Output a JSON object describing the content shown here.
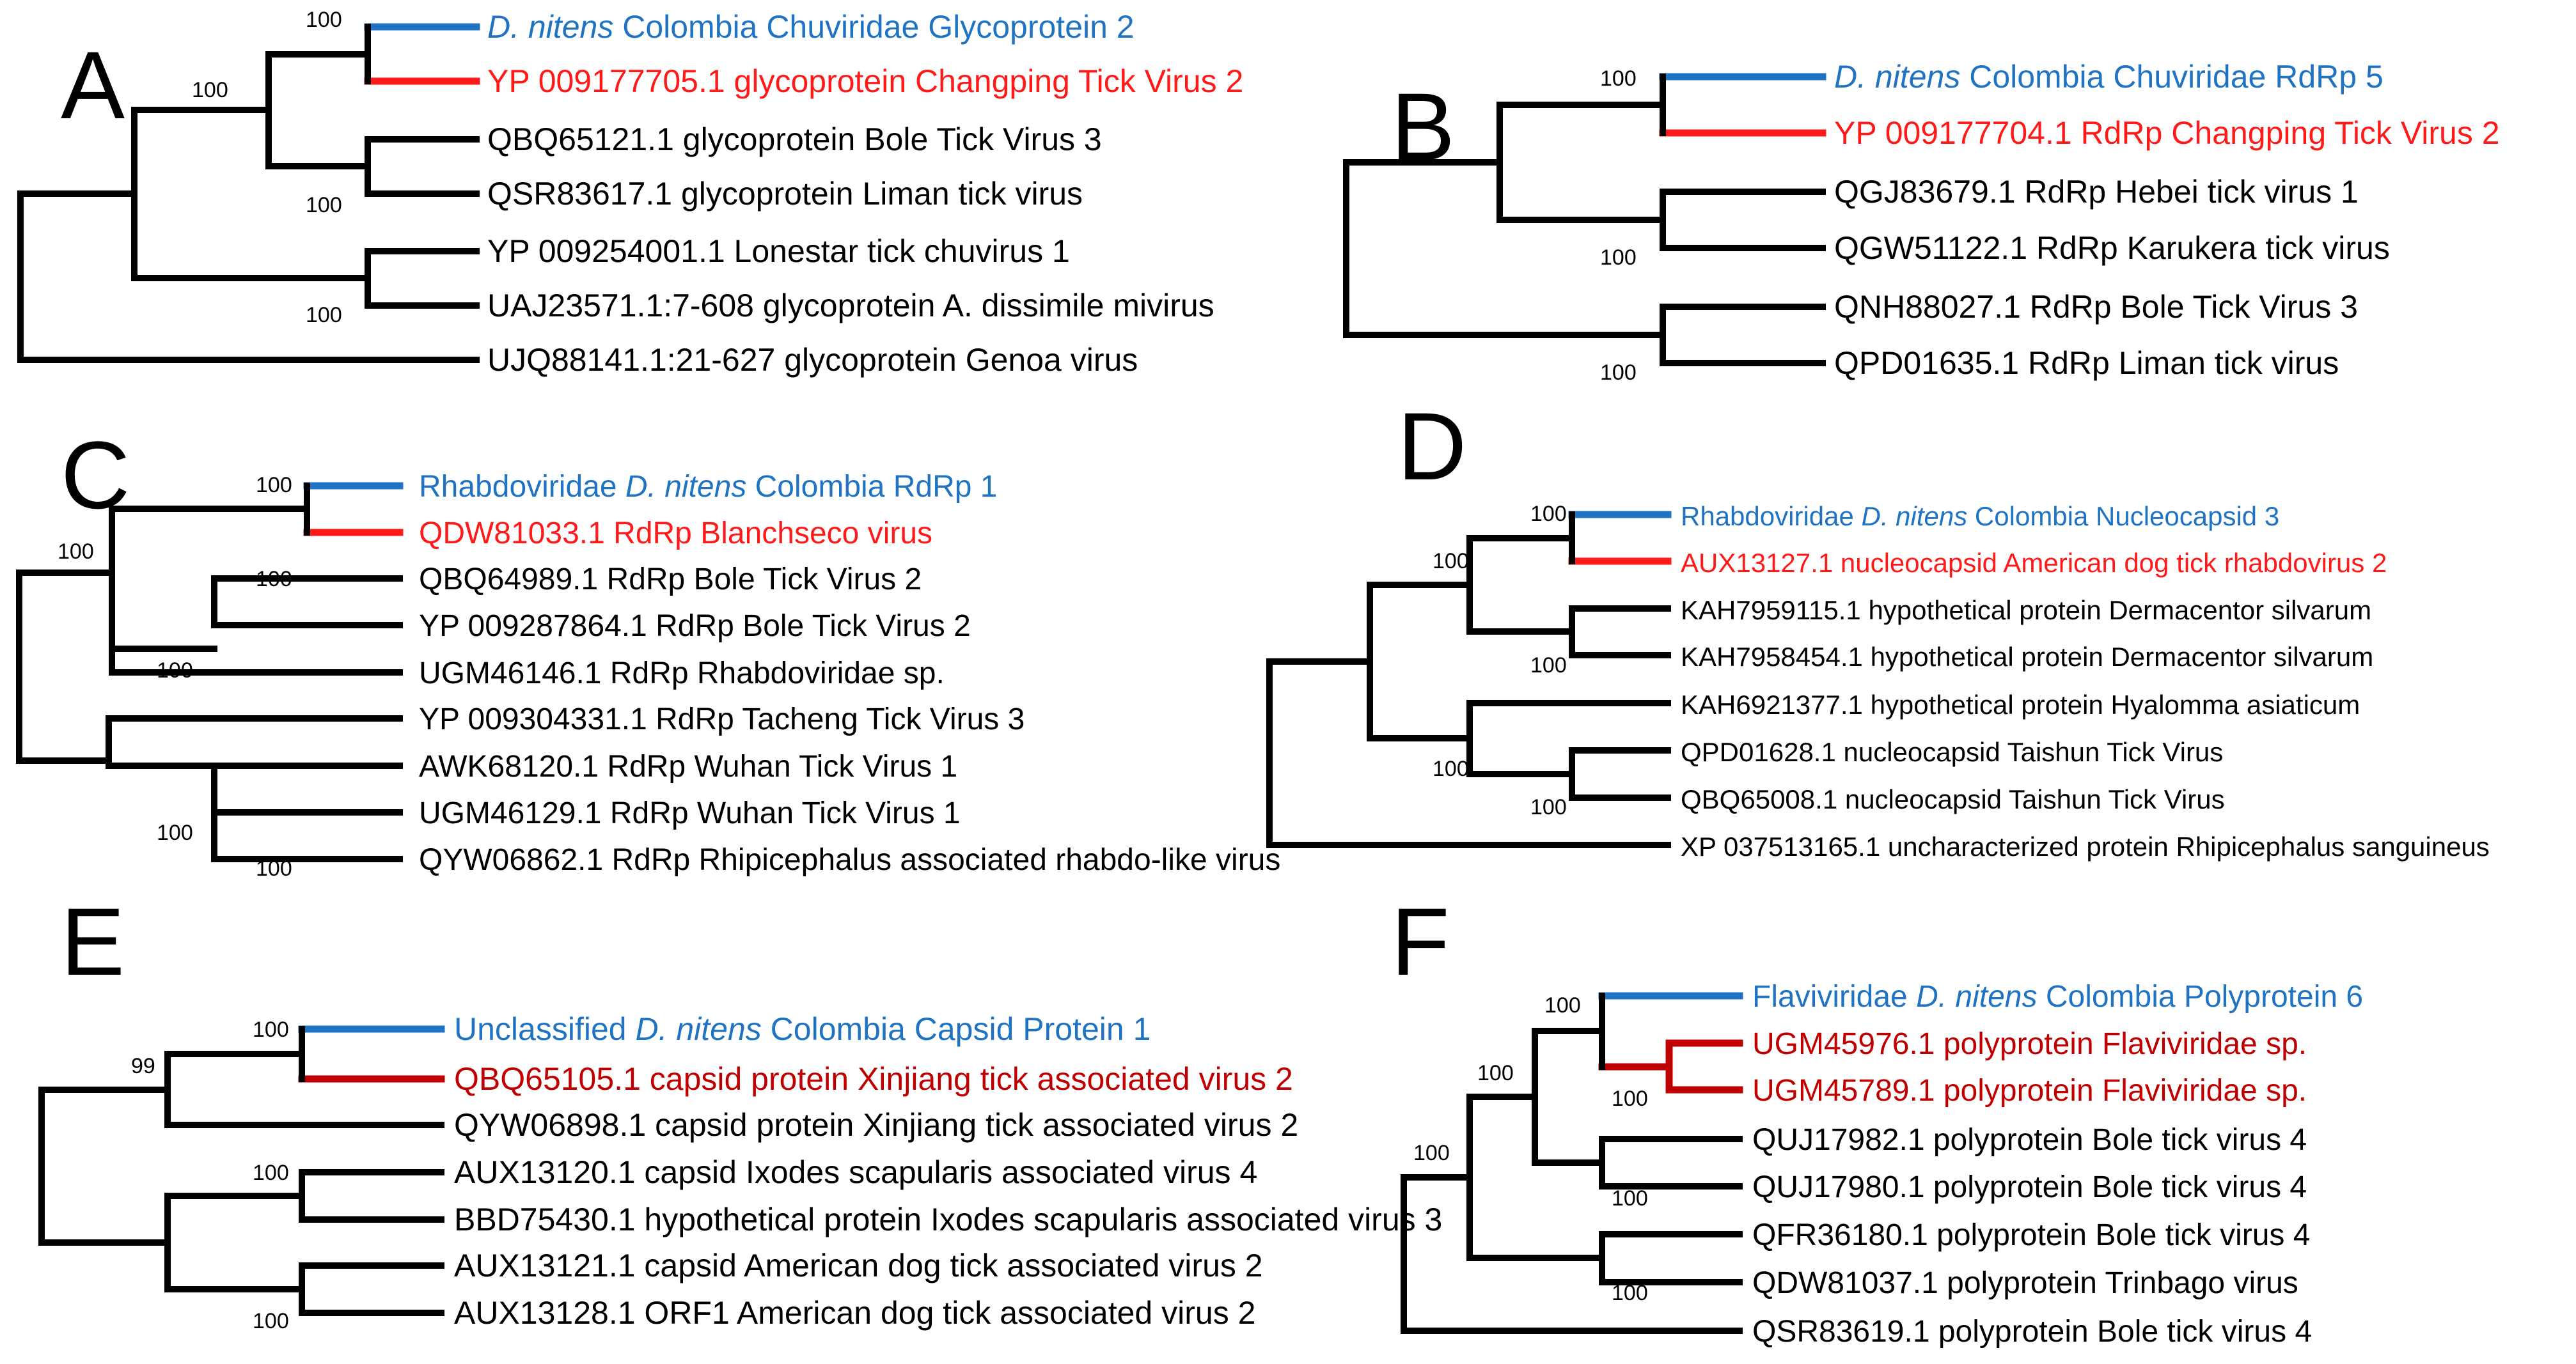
{
  "colors": {
    "black": "#000000",
    "blue": "#1f73c2",
    "red": "#ff1a1a",
    "darkred": "#c00000"
  },
  "panels": [
    {
      "letter": "A",
      "labels": [
        {
          "pre": "",
          "italic": "D. nitens",
          "post": " Colombia Chuviridae Glycoprotein 2",
          "color": "blue"
        },
        {
          "pre": "YP 009177705.1 glycoprotein Changping Tick Virus 2",
          "italic": "",
          "post": "",
          "color": "red"
        },
        {
          "pre": "QBQ65121.1 glycoprotein Bole Tick Virus 3",
          "italic": "",
          "post": "",
          "color": "black"
        },
        {
          "pre": "QSR83617.1 glycoprotein Liman tick virus",
          "italic": "",
          "post": "",
          "color": "black"
        },
        {
          "pre": "YP 009254001.1 Lonestar tick chuvirus 1",
          "italic": "",
          "post": "",
          "color": "black"
        },
        {
          "pre": "UAJ23571.1:7-608 glycoprotein A. dissimile mivirus",
          "italic": "",
          "post": "",
          "color": "black"
        },
        {
          "pre": "UJQ88141.1:21-627 glycoprotein Genoa virus",
          "italic": "",
          "post": "",
          "color": "black"
        }
      ],
      "bootstrap": [
        "100",
        "100",
        "100",
        "100"
      ]
    },
    {
      "letter": "B",
      "labels": [
        {
          "pre": "",
          "italic": "D. nitens",
          "post": " Colombia Chuviridae RdRp 5",
          "color": "blue"
        },
        {
          "pre": "YP 009177704.1 RdRp Changping Tick Virus 2",
          "italic": "",
          "post": "",
          "color": "red"
        },
        {
          "pre": "QGJ83679.1 RdRp Hebei tick virus 1",
          "italic": "",
          "post": "",
          "color": "black"
        },
        {
          "pre": "QGW51122.1 RdRp Karukera tick virus",
          "italic": "",
          "post": "",
          "color": "black"
        },
        {
          "pre": "QNH88027.1 RdRp Bole Tick Virus 3",
          "italic": "",
          "post": "",
          "color": "black"
        },
        {
          "pre": "QPD01635.1 RdRp Liman tick virus",
          "italic": "",
          "post": "",
          "color": "black"
        }
      ],
      "bootstrap": [
        "100",
        "100",
        "100"
      ]
    },
    {
      "letter": "C",
      "labels": [
        {
          "pre": "Rhabdoviridae ",
          "italic": "D. nitens",
          "post": " Colombia RdRp 1",
          "color": "blue"
        },
        {
          "pre": "QDW81033.1 RdRp Blanchseco virus",
          "italic": "",
          "post": "",
          "color": "red"
        },
        {
          "pre": "QBQ64989.1 RdRp Bole Tick Virus 2",
          "italic": "",
          "post": "",
          "color": "black"
        },
        {
          "pre": "YP 009287864.1 RdRp Bole Tick Virus 2",
          "italic": "",
          "post": "",
          "color": "black"
        },
        {
          "pre": "UGM46146.1 RdRp Rhabdoviridae sp.",
          "italic": "",
          "post": "",
          "color": "black"
        },
        {
          "pre": "YP 009304331.1 RdRp Tacheng Tick Virus 3",
          "italic": "",
          "post": "",
          "color": "black"
        },
        {
          "pre": "AWK68120.1 RdRp Wuhan Tick Virus 1",
          "italic": "",
          "post": "",
          "color": "black"
        },
        {
          "pre": "UGM46129.1 RdRp Wuhan Tick Virus 1",
          "italic": "",
          "post": "",
          "color": "black"
        },
        {
          "pre": "QYW06862.1 RdRp Rhipicephalus associated rhabdo-like virus",
          "italic": "",
          "post": "",
          "color": "black"
        }
      ],
      "bootstrap": [
        "100",
        "100",
        "100",
        "100",
        "100",
        "100"
      ]
    },
    {
      "letter": "D",
      "labels": [
        {
          "pre": "Rhabdoviridae ",
          "italic": "D. nitens",
          "post": " Colombia Nucleocapsid 3",
          "color": "blue"
        },
        {
          "pre": "AUX13127.1 nucleocapsid American dog tick rhabdovirus 2",
          "italic": "",
          "post": "",
          "color": "red"
        },
        {
          "pre": "KAH7959115.1 hypothetical protein Dermacentor silvarum",
          "italic": "",
          "post": "",
          "color": "black"
        },
        {
          "pre": "KAH7958454.1 hypothetical protein Dermacentor silvarum",
          "italic": "",
          "post": "",
          "color": "black"
        },
        {
          "pre": "KAH6921377.1 hypothetical protein Hyalomma asiaticum",
          "italic": "",
          "post": "",
          "color": "black"
        },
        {
          "pre": "QPD01628.1 nucleocapsid Taishun Tick Virus",
          "italic": "",
          "post": "",
          "color": "black"
        },
        {
          "pre": "QBQ65008.1 nucleocapsid Taishun Tick Virus",
          "italic": "",
          "post": "",
          "color": "black"
        },
        {
          "pre": "XP 037513165.1 uncharacterized protein Rhipicephalus sanguineus",
          "italic": "",
          "post": "",
          "color": "black"
        }
      ],
      "bootstrap": [
        "100",
        "100",
        "100",
        "100",
        "100"
      ]
    },
    {
      "letter": "E",
      "labels": [
        {
          "pre": "Unclassified ",
          "italic": "D. nitens",
          "post": " Colombia Capsid Protein 1",
          "color": "blue"
        },
        {
          "pre": "QBQ65105.1 capsid protein Xinjiang tick associated virus 2",
          "italic": "",
          "post": "",
          "color": "darkred"
        },
        {
          "pre": "QYW06898.1 capsid protein Xinjiang tick associated virus 2",
          "italic": "",
          "post": "",
          "color": "black"
        },
        {
          "pre": "AUX13120.1 capsid Ixodes scapularis associated virus 4",
          "italic": "",
          "post": "",
          "color": "black"
        },
        {
          "pre": "BBD75430.1 hypothetical protein Ixodes scapularis associated virus 3",
          "italic": "",
          "post": "",
          "color": "black"
        },
        {
          "pre": "AUX13121.1 capsid American dog tick associated virus 2",
          "italic": "",
          "post": "",
          "color": "black"
        },
        {
          "pre": "AUX13128.1 ORF1 American dog tick associated virus 2",
          "italic": "",
          "post": "",
          "color": "black"
        }
      ],
      "bootstrap": [
        "100",
        "99",
        "100",
        "100"
      ]
    },
    {
      "letter": "F",
      "labels": [
        {
          "pre": "Flaviviridae ",
          "italic": "D. nitens",
          "post": " Colombia Polyprotein 6",
          "color": "blue"
        },
        {
          "pre": "UGM45976.1 polyprotein Flaviviridae sp.",
          "italic": "",
          "post": "",
          "color": "darkred"
        },
        {
          "pre": "UGM45789.1 polyprotein Flaviviridae sp.",
          "italic": "",
          "post": "",
          "color": "darkred"
        },
        {
          "pre": "QUJ17982.1 polyprotein Bole tick virus 4",
          "italic": "",
          "post": "",
          "color": "black"
        },
        {
          "pre": "QUJ17980.1 polyprotein Bole tick virus 4",
          "italic": "",
          "post": "",
          "color": "black"
        },
        {
          "pre": "QFR36180.1 polyprotein Bole tick virus 4",
          "italic": "",
          "post": "",
          "color": "black"
        },
        {
          "pre": "QDW81037.1 polyprotein Trinbago virus",
          "italic": "",
          "post": "",
          "color": "black"
        },
        {
          "pre": "QSR83619.1 polyprotein Bole tick virus 4",
          "italic": "",
          "post": "",
          "color": "black"
        }
      ],
      "bootstrap": [
        "100",
        "100",
        "100",
        "100",
        "100",
        "100"
      ]
    }
  ]
}
